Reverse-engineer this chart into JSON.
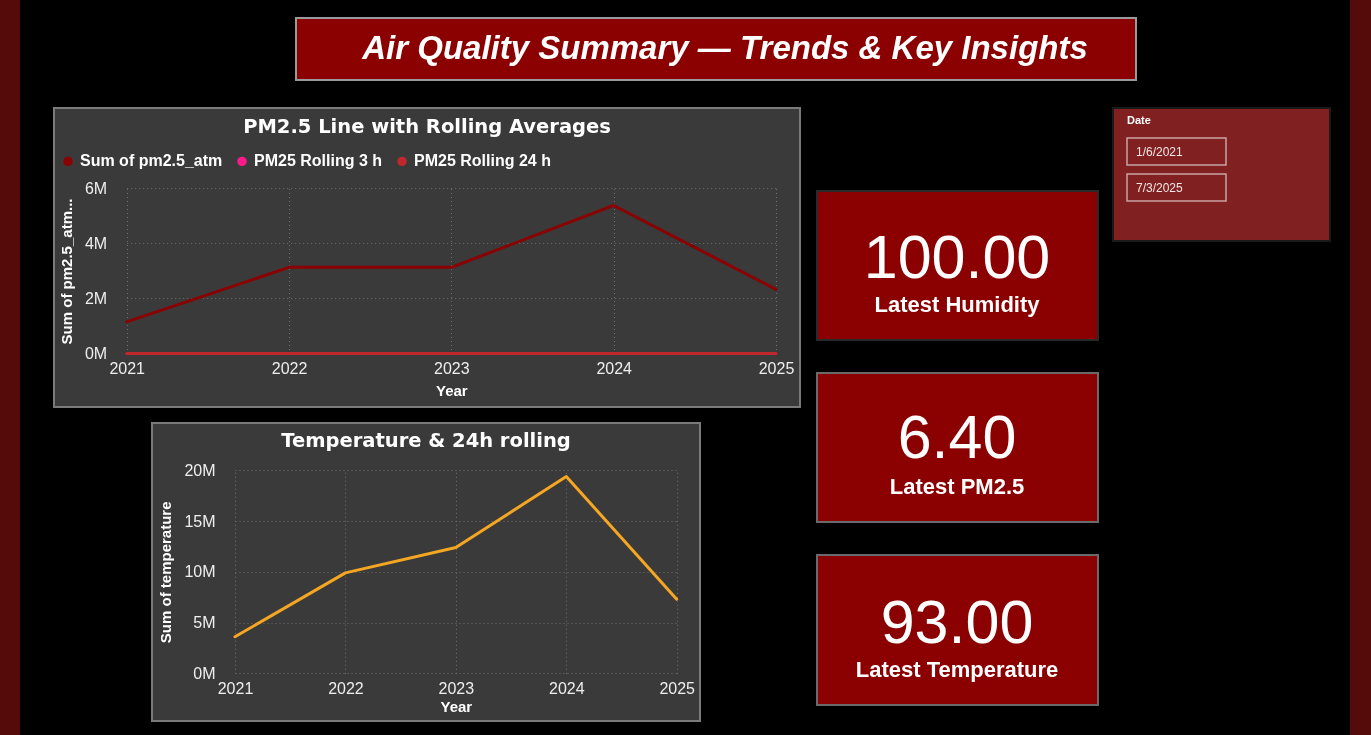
{
  "chart_data": [
    {
      "type": "other",
      "title": "Air Quality Summary — Trends & Key Insights"
    },
    {
      "type": "line",
      "title": "PM2.5 Line with Rolling Averages",
      "xlabel": "Year",
      "ylabel": "Sum of pm2.5_atm...",
      "categories": [
        "2021",
        "2022",
        "2023",
        "2024",
        "2025"
      ],
      "series": [
        {
          "name": "Sum of pm2.5_atm",
          "color": "#8b0000",
          "values": [
            1150000,
            3130000,
            3130000,
            5380000,
            2330000
          ]
        },
        {
          "name": "PM25 Rolling 3 h",
          "color": "#ff1a8c",
          "values": [
            null,
            null,
            null,
            null,
            null
          ]
        },
        {
          "name": "PM25 Rolling 24 h",
          "color": "#c0282d",
          "values": [
            0,
            0,
            0,
            0,
            0
          ]
        }
      ],
      "ylim": [
        0,
        6000000
      ],
      "yticks": [
        {
          "value": 0,
          "label": "0M"
        },
        {
          "value": 2000000,
          "label": "2M"
        },
        {
          "value": 4000000,
          "label": "4M"
        },
        {
          "value": 6000000,
          "label": "6M"
        }
      ],
      "grid": true,
      "legend": "top left"
    },
    {
      "type": "line",
      "title": "Temperature & 24h rolling",
      "xlabel": "Year",
      "ylabel": "Sum of temperature",
      "categories": [
        "2021",
        "2022",
        "2023",
        "2024",
        "2025"
      ],
      "series": [
        {
          "color": "#f5a623",
          "values": [
            3600000,
            9900000,
            12400000,
            19400000,
            7300000
          ]
        }
      ],
      "ylim": [
        0,
        20000000
      ],
      "yticks": [
        {
          "value": 0,
          "label": "0M"
        },
        {
          "value": 5000000,
          "label": "5M"
        },
        {
          "value": 10000000,
          "label": "10M"
        },
        {
          "value": 15000000,
          "label": "15M"
        },
        {
          "value": 20000000,
          "label": "20M"
        }
      ],
      "grid": true
    },
    {
      "type": "other",
      "title": "Latest Humidity",
      "annotations": [
        "100.00"
      ]
    },
    {
      "type": "other",
      "title": "Latest PM2.5",
      "annotations": [
        "6.40"
      ]
    },
    {
      "type": "other",
      "title": "Latest Temperature",
      "annotations": [
        "93.00"
      ]
    },
    {
      "type": "other",
      "title": "Date",
      "annotations": [
        "1/6/2021",
        "7/3/2025"
      ]
    }
  ]
}
